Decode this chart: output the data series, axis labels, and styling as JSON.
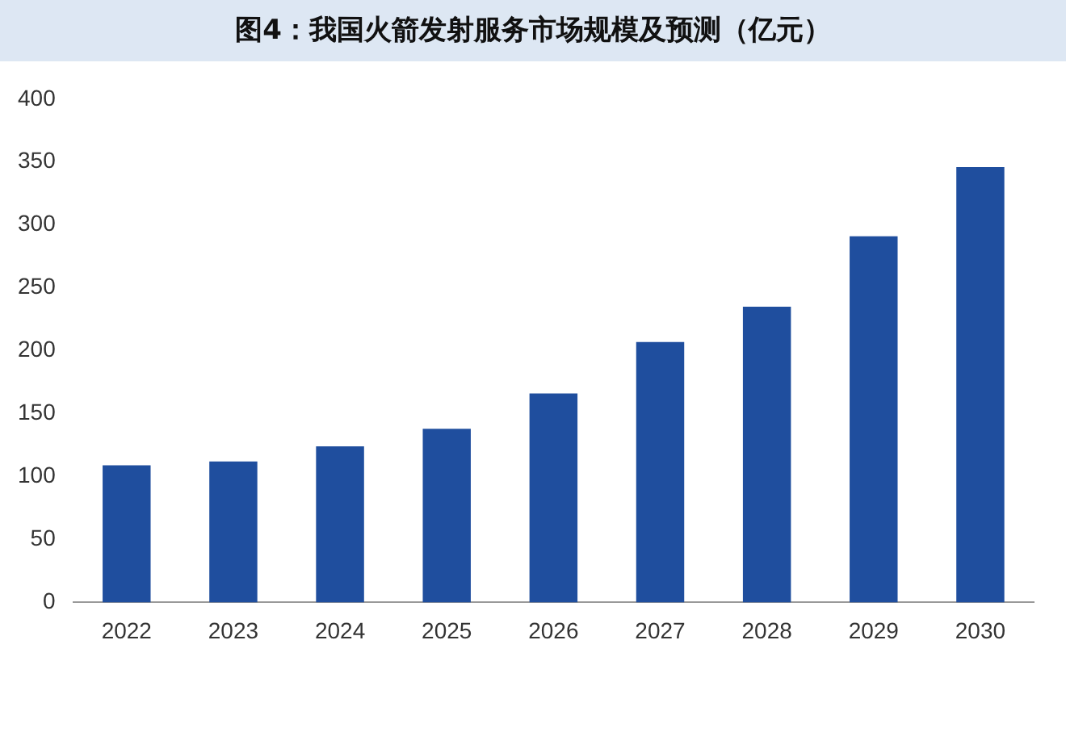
{
  "chart_data": {
    "type": "bar",
    "title": "图4：我国火箭发射服务市场规模及预测（亿元）",
    "categories": [
      "2022",
      "2023",
      "2024",
      "2025",
      "2026",
      "2027",
      "2028",
      "2029",
      "2030"
    ],
    "values": [
      109,
      112,
      124,
      138,
      166,
      207,
      235,
      291,
      346
    ],
    "color": "#1f4e9e",
    "ylim": [
      0,
      400
    ],
    "yticks": [
      0,
      50,
      100,
      150,
      200,
      250,
      300,
      350,
      400
    ],
    "grid": false
  }
}
